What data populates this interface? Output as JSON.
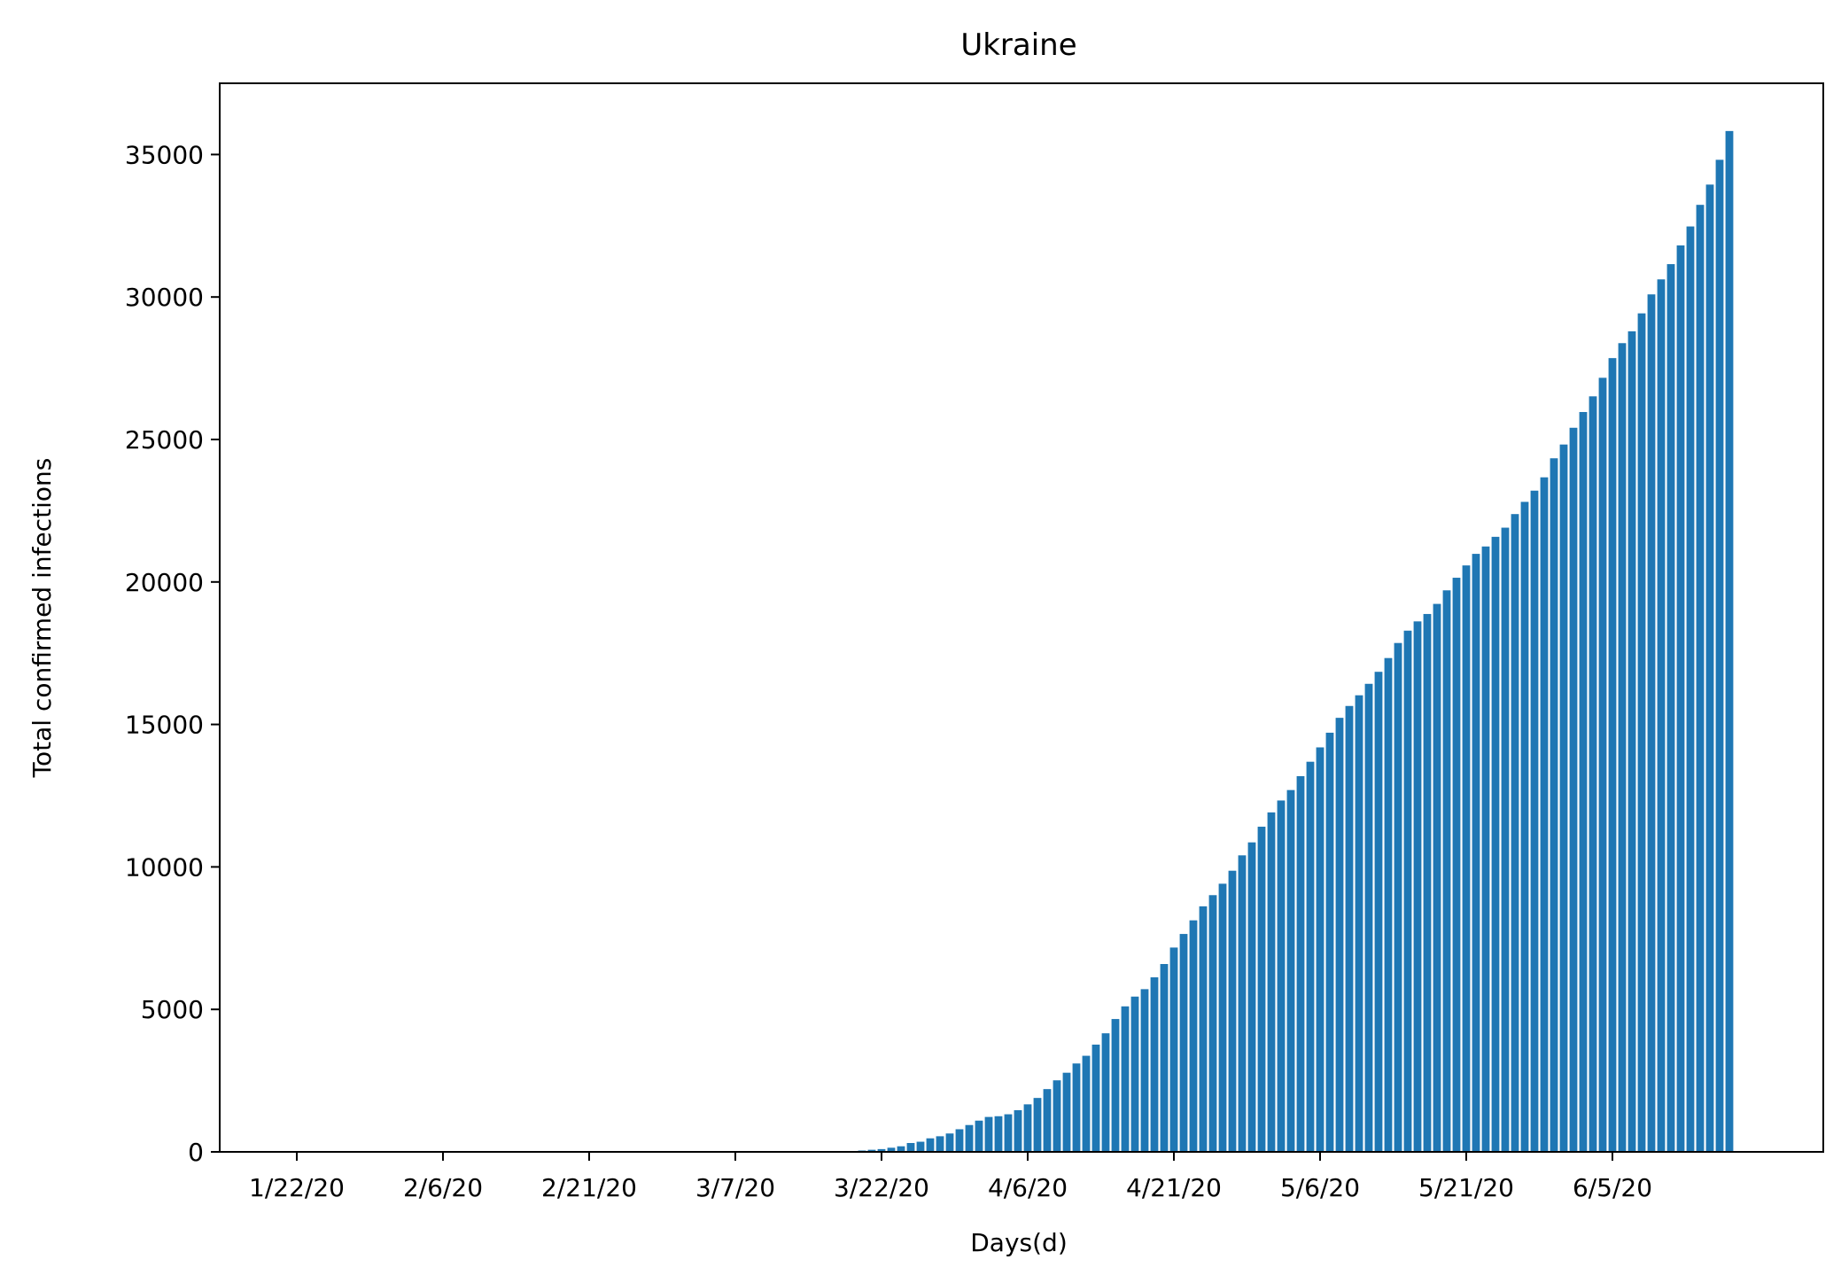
{
  "chart_data": {
    "type": "bar",
    "title": "Ukraine",
    "xlabel": "Days(d)",
    "ylabel": "Total confirmed infections",
    "ylim": [
      0,
      37500
    ],
    "yticks": [
      0,
      5000,
      10000,
      15000,
      20000,
      25000,
      30000,
      35000
    ],
    "xtick_labels": [
      "1/22/20",
      "2/6/20",
      "2/21/20",
      "3/7/20",
      "3/22/20",
      "4/6/20",
      "4/21/20",
      "5/6/20",
      "5/21/20",
      "6/5/20"
    ],
    "xtick_step_days": 15,
    "bar_color": "#1f77b4",
    "grid": false,
    "legend": "none",
    "start_date": "1/22/20",
    "values": [
      0,
      0,
      0,
      0,
      0,
      0,
      0,
      0,
      0,
      0,
      0,
      0,
      0,
      0,
      0,
      0,
      0,
      0,
      0,
      0,
      0,
      0,
      0,
      0,
      0,
      0,
      0,
      0,
      0,
      0,
      0,
      0,
      0,
      0,
      0,
      0,
      0,
      0,
      0,
      0,
      0,
      0,
      0,
      0,
      0,
      0,
      1,
      1,
      1,
      1,
      1,
      1,
      3,
      3,
      7,
      14,
      16,
      29,
      47,
      73,
      97,
      145,
      196,
      311,
      356,
      475,
      548,
      645,
      794,
      942,
      1096,
      1225,
      1251,
      1319,
      1462,
      1668,
      1892,
      2203,
      2511,
      2777,
      3102,
      3372,
      3764,
      4161,
      4662,
      5106,
      5449,
      5710,
      6125,
      6592,
      7170,
      7647,
      8125,
      8617,
      9009,
      9410,
      9866,
      10406,
      10861,
      11411,
      11913,
      12331,
      12697,
      13184,
      13691,
      14195,
      14710,
      15232,
      15648,
      16023,
      16425,
      16847,
      17330,
      17858,
      18291,
      18616,
      18876,
      19230,
      19706,
      20148,
      20580,
      20986,
      21245,
      21584,
      21905,
      22382,
      22811,
      23204,
      23672,
      24340,
      24823,
      25411,
      25964,
      26514,
      27165,
      27856,
      28381,
      28796,
      29426,
      30092,
      30619,
      31154,
      31810,
      32476,
      33234,
      33945,
      34815,
      35825
    ]
  }
}
